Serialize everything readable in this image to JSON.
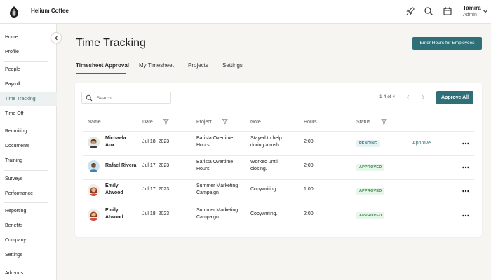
{
  "header": {
    "brand": "Helium Coffee",
    "user_name": "Tamira",
    "user_role": "Admin",
    "icons": [
      "logo-icon",
      "rocket-icon",
      "search-icon",
      "calendar-icon",
      "chevron-down-icon"
    ]
  },
  "sidebar": {
    "items": [
      {
        "label": "Home"
      },
      {
        "label": "Profile"
      },
      {
        "label": "People"
      },
      {
        "label": "Payroll"
      },
      {
        "label": "Time Tracking",
        "active": true
      },
      {
        "label": "Time Off"
      },
      {
        "label": "Recruiting"
      },
      {
        "label": "Documents"
      },
      {
        "label": "Training"
      },
      {
        "label": "Surveys"
      },
      {
        "label": "Performance"
      },
      {
        "label": "Reporting"
      },
      {
        "label": "Benefits"
      },
      {
        "label": "Company"
      },
      {
        "label": "Settings"
      },
      {
        "label": "Add-ons"
      }
    ]
  },
  "main": {
    "title": "Time Tracking",
    "enter_hours_label": "Enter Hours for Employees",
    "tabs": [
      {
        "label": "Timesheet Approval",
        "active": true
      },
      {
        "label": "My Timesheet"
      },
      {
        "label": "Projects"
      },
      {
        "label": "Settings"
      }
    ]
  },
  "table": {
    "search_placeholder": "Search",
    "pagination": "1-4 of 4",
    "approve_all_label": "Approve All",
    "columns": {
      "name": "Name",
      "date": "Date",
      "project": "Project",
      "note": "Note",
      "hours": "Hours",
      "status": "Status"
    },
    "rows": [
      {
        "name_1": "Michaela",
        "name_2": "Aux",
        "date": "Jul 18, 2023",
        "project_1": "Barista Overtime",
        "project_2": "Hours",
        "note_1": "Stayed to help",
        "note_2": "during a rush.",
        "hours": "2:00",
        "status": "PENDING",
        "action": "Approve"
      },
      {
        "name_1": "Rafael Rivera",
        "name_2": "",
        "date": "Jul 17, 2023",
        "project_1": "Barista Overtime",
        "project_2": "Hours",
        "note_1": "Worked until",
        "note_2": "closing.",
        "hours": "2:00",
        "status": "APPROVED",
        "action": ""
      },
      {
        "name_1": "Emily",
        "name_2": "Atwood",
        "date": "Jul 17, 2023",
        "project_1": "Summer Marketing",
        "project_2": "Campaign",
        "note_1": "Copywriting.",
        "note_2": "",
        "hours": "1:00",
        "status": "APPROVED",
        "action": ""
      },
      {
        "name_1": "Emily",
        "name_2": "Atwood",
        "date": "Jul 18, 2023",
        "project_1": "Summer Marketing",
        "project_2": "Campaign",
        "note_1": "Copywriting.",
        "note_2": "",
        "hours": "2:00",
        "status": "APPROVED",
        "action": ""
      }
    ]
  },
  "colors": {
    "accent": "#2f6f78",
    "pending_bg": "#e6f2f4",
    "approved_bg": "#e8f5ea",
    "approved_text": "#3b8a4a"
  }
}
